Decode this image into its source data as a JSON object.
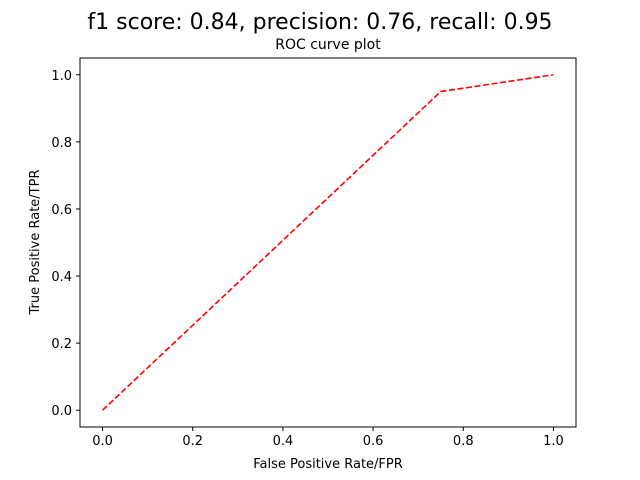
{
  "figure": {
    "suptitle": "f1 score: 0.84, precision: 0.76, recall: 0.95"
  },
  "chart_data": {
    "type": "line",
    "title": "ROC curve plot",
    "xlabel": "False Positive Rate/FPR",
    "ylabel": "True Positive Rate/TPR",
    "xlim": [
      -0.05,
      1.05
    ],
    "ylim": [
      -0.05,
      1.05
    ],
    "xticks": [
      "0.0",
      "0.2",
      "0.4",
      "0.6",
      "0.8",
      "1.0"
    ],
    "yticks": [
      "0.0",
      "0.2",
      "0.4",
      "0.6",
      "0.8",
      "1.0"
    ],
    "series": [
      {
        "x": [
          0.0,
          0.75,
          1.0
        ],
        "y": [
          0.0,
          0.95,
          1.0
        ],
        "color": "#ff0000",
        "linestyle": "dashed"
      }
    ],
    "grid": false,
    "legend": false
  }
}
